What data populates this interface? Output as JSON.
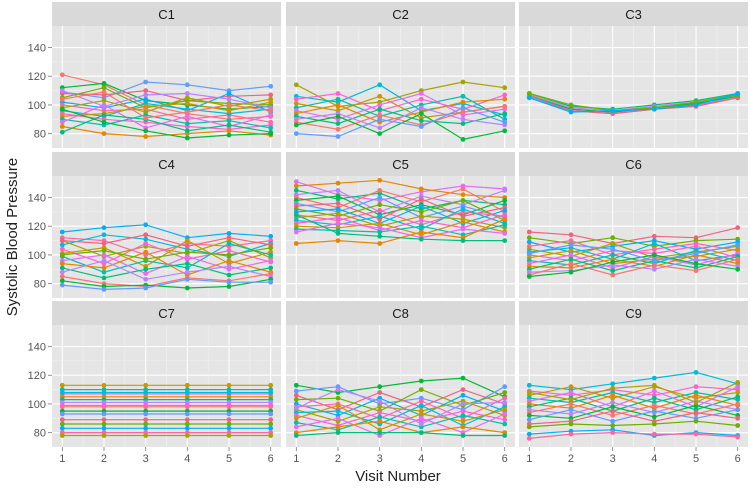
{
  "chart_data": {
    "type": "line",
    "layout": "facet-grid-3x3",
    "xlabel": "Visit Number",
    "ylabel": "Systolic Blood Pressure",
    "x": [
      1,
      2,
      3,
      4,
      5,
      6
    ],
    "x_ticks": [
      "1",
      "2",
      "3",
      "4",
      "5",
      "6"
    ],
    "y_ticks": [
      "80",
      "100",
      "120",
      "140"
    ],
    "ylim": [
      70,
      155
    ],
    "grid": true,
    "background": "#e5e5e5",
    "strip_fill": "#d9d9d9",
    "palette": [
      "#f8766d",
      "#e58700",
      "#c99800",
      "#a3a500",
      "#6bb100",
      "#00ba38",
      "#00bf7d",
      "#00c0af",
      "#00bcd8",
      "#00b0f6",
      "#619cff",
      "#b983ff",
      "#e76bf3",
      "#fd61d1",
      "#ff67a4",
      "#f0637f"
    ],
    "panels": [
      {
        "title": "C1",
        "series": [
          [
            121,
            114,
            100,
            94,
            90,
            92
          ],
          [
            112,
            115,
            103,
            100,
            97,
            99
          ],
          [
            109,
            105,
            116,
            114,
            110,
            113
          ],
          [
            108,
            107,
            110,
            103,
            106,
            107
          ],
          [
            105,
            112,
            98,
            103,
            101,
            100
          ],
          [
            102,
            98,
            104,
            96,
            108,
            95
          ],
          [
            100,
            96,
            97,
            90,
            93,
            88
          ],
          [
            98,
            103,
            95,
            105,
            99,
            104
          ],
          [
            96,
            92,
            101,
            97,
            94,
            97
          ],
          [
            94,
            90,
            88,
            85,
            83,
            86
          ],
          [
            92,
            94,
            99,
            101,
            96,
            102
          ],
          [
            90,
            86,
            93,
            87,
            89,
            84
          ],
          [
            88,
            100,
            84,
            92,
            85,
            93
          ],
          [
            85,
            80,
            78,
            80,
            82,
            79
          ],
          [
            81,
            93,
            90,
            82,
            86,
            81
          ],
          [
            110,
            99,
            107,
            108,
            104,
            98
          ],
          [
            104,
            109,
            91,
            95,
            100,
            96
          ],
          [
            97,
            88,
            82,
            77,
            79,
            80
          ]
        ]
      },
      {
        "title": "C2",
        "series": [
          [
            114,
            99,
            102,
            110,
            116,
            112
          ],
          [
            106,
            102,
            114,
            96,
            101,
            93
          ],
          [
            104,
            108,
            96,
            104,
            97,
            107
          ],
          [
            101,
            96,
            106,
            91,
            95,
            99
          ],
          [
            98,
            104,
            92,
            100,
            106,
            90
          ],
          [
            96,
            90,
            100,
            108,
            93,
            97
          ],
          [
            94,
            100,
            88,
            95,
            102,
            104
          ],
          [
            92,
            87,
            97,
            89,
            87,
            94
          ],
          [
            90,
            94,
            84,
            98,
            90,
            86
          ],
          [
            88,
            83,
            93,
            86,
            95,
            99
          ],
          [
            86,
            92,
            80,
            94,
            76,
            82
          ],
          [
            80,
            78,
            90,
            85,
            98,
            88
          ]
        ]
      },
      {
        "title": "C3",
        "series": [
          [
            108,
            99,
            97,
            100,
            103,
            108
          ],
          [
            107,
            98,
            96,
            99,
            102,
            107
          ],
          [
            107,
            97,
            95,
            98,
            101,
            106
          ],
          [
            106,
            97,
            95,
            98,
            101,
            106
          ],
          [
            106,
            96,
            94,
            97,
            100,
            105
          ],
          [
            105,
            96,
            94,
            97,
            99,
            105
          ],
          [
            108,
            100,
            96,
            98,
            102,
            107
          ],
          [
            105,
            95,
            96,
            97,
            100,
            108
          ]
        ]
      },
      {
        "title": "C4",
        "series": [
          [
            116,
            119,
            121,
            112,
            115,
            113
          ],
          [
            112,
            110,
            100,
            108,
            106,
            110
          ],
          [
            110,
            99,
            106,
            101,
            110,
            98
          ],
          [
            107,
            114,
            111,
            104,
            99,
            108
          ],
          [
            104,
            94,
            108,
            97,
            103,
            95
          ],
          [
            101,
            105,
            92,
            110,
            94,
            102
          ],
          [
            99,
            88,
            96,
            91,
            108,
            100
          ],
          [
            96,
            100,
            87,
            99,
            90,
            96
          ],
          [
            94,
            91,
            102,
            86,
            96,
            88
          ],
          [
            91,
            84,
            90,
            94,
            86,
            91
          ],
          [
            88,
            96,
            83,
            88,
            92,
            85
          ],
          [
            85,
            80,
            78,
            84,
            82,
            87
          ],
          [
            82,
            78,
            79,
            77,
            78,
            83
          ],
          [
            79,
            76,
            77,
            83,
            81,
            81
          ],
          [
            110,
            108,
            114,
            106,
            112,
            107
          ],
          [
            100,
            103,
            97,
            102,
            100,
            105
          ]
        ]
      },
      {
        "title": "C5",
        "series": [
          [
            151,
            142,
            138,
            144,
            148,
            146
          ],
          [
            148,
            150,
            152,
            146,
            142,
            140
          ],
          [
            145,
            139,
            143,
            132,
            138,
            135
          ],
          [
            142,
            145,
            130,
            141,
            135,
            145
          ],
          [
            140,
            133,
            145,
            137,
            146,
            130
          ],
          [
            138,
            141,
            128,
            135,
            128,
            138
          ],
          [
            136,
            130,
            140,
            126,
            134,
            126
          ],
          [
            134,
            136,
            125,
            139,
            127,
            133
          ],
          [
            132,
            127,
            135,
            130,
            138,
            124
          ],
          [
            130,
            132,
            122,
            134,
            122,
            131
          ],
          [
            128,
            124,
            131,
            121,
            130,
            127
          ],
          [
            126,
            129,
            120,
            127,
            125,
            119
          ],
          [
            124,
            121,
            127,
            118,
            132,
            122
          ],
          [
            122,
            126,
            117,
            124,
            119,
            128
          ],
          [
            120,
            119,
            122,
            114,
            123,
            116
          ],
          [
            118,
            117,
            116,
            120,
            114,
            121
          ],
          [
            116,
            122,
            119,
            112,
            118,
            115
          ],
          [
            108,
            110,
            108,
            116,
            112,
            125
          ],
          [
            128,
            115,
            113,
            111,
            110,
            110
          ]
        ]
      },
      {
        "title": "C6",
        "series": [
          [
            116,
            114,
            108,
            113,
            112,
            119
          ],
          [
            112,
            108,
            112,
            106,
            110,
            111
          ],
          [
            109,
            102,
            106,
            110,
            104,
            109
          ],
          [
            106,
            110,
            100,
            104,
            108,
            103
          ],
          [
            104,
            99,
            108,
            98,
            102,
            106
          ],
          [
            102,
            105,
            97,
            108,
            96,
            100
          ],
          [
            100,
            96,
            103,
            101,
            106,
            98
          ],
          [
            98,
            103,
            94,
            97,
            99,
            104
          ],
          [
            96,
            93,
            100,
            94,
            103,
            96
          ],
          [
            94,
            100,
            91,
            99,
            93,
            101
          ],
          [
            92,
            91,
            97,
            92,
            100,
            94
          ],
          [
            90,
            97,
            89,
            96,
            91,
            99
          ],
          [
            88,
            89,
            93,
            90,
            97,
            92
          ],
          [
            86,
            94,
            86,
            93,
            89,
            97
          ],
          [
            85,
            88,
            95,
            100,
            94,
            90
          ],
          [
            101,
            107,
            104,
            96,
            101,
            107
          ]
        ]
      },
      {
        "title": "C7",
        "series": [
          [
            113,
            113,
            113,
            113,
            113,
            113
          ],
          [
            110,
            110,
            110,
            110,
            110,
            110
          ],
          [
            107,
            107,
            107,
            107,
            107,
            107
          ],
          [
            105,
            105,
            105,
            105,
            105,
            105
          ],
          [
            103,
            103,
            103,
            103,
            103,
            103
          ],
          [
            101,
            101,
            101,
            101,
            101,
            101
          ],
          [
            98,
            98,
            98,
            98,
            98,
            98
          ],
          [
            95,
            95,
            95,
            95,
            95,
            95
          ],
          [
            93,
            93,
            93,
            93,
            93,
            93
          ],
          [
            89,
            89,
            89,
            89,
            89,
            89
          ],
          [
            86,
            86,
            86,
            86,
            86,
            86
          ],
          [
            83,
            83,
            83,
            83,
            83,
            83
          ],
          [
            80,
            80,
            80,
            80,
            80,
            80
          ],
          [
            78,
            78,
            78,
            78,
            78,
            78
          ],
          [
            108,
            108,
            108,
            108,
            108,
            108
          ],
          [
            99,
            99,
            99,
            99,
            99,
            99
          ]
        ]
      },
      {
        "title": "C8",
        "series": [
          [
            113,
            108,
            112,
            116,
            118,
            105
          ],
          [
            109,
            112,
            100,
            104,
            96,
            112
          ],
          [
            106,
            96,
            108,
            98,
            110,
            100
          ],
          [
            103,
            104,
            95,
            110,
            99,
            108
          ],
          [
            100,
            92,
            104,
            92,
            106,
            95
          ],
          [
            98,
            100,
            90,
            102,
            90,
            104
          ],
          [
            96,
            88,
            98,
            95,
            102,
            92
          ],
          [
            94,
            95,
            86,
            99,
            85,
            98
          ],
          [
            92,
            85,
            94,
            88,
            95,
            89
          ],
          [
            90,
            99,
            82,
            93,
            88,
            96
          ],
          [
            87,
            82,
            91,
            84,
            92,
            86
          ],
          [
            84,
            90,
            78,
            90,
            80,
            93
          ],
          [
            80,
            84,
            88,
            80,
            84,
            80
          ],
          [
            78,
            80,
            80,
            80,
            78,
            78
          ],
          [
            97,
            110,
            102,
            86,
            100,
            101
          ]
        ]
      },
      {
        "title": "C9",
        "series": [
          [
            113,
            110,
            114,
            118,
            122,
            114
          ],
          [
            109,
            106,
            110,
            106,
            112,
            110
          ],
          [
            106,
            112,
            104,
            112,
            104,
            108
          ],
          [
            104,
            101,
            108,
            101,
            108,
            103
          ],
          [
            102,
            108,
            98,
            109,
            98,
            112
          ],
          [
            100,
            97,
            106,
            97,
            106,
            99
          ],
          [
            98,
            104,
            95,
            104,
            96,
            105
          ],
          [
            96,
            93,
            101,
            94,
            102,
            96
          ],
          [
            94,
            100,
            92,
            99,
            93,
            100
          ],
          [
            92,
            90,
            98,
            91,
            99,
            92
          ],
          [
            89,
            96,
            88,
            95,
            90,
            96
          ],
          [
            86,
            88,
            95,
            88,
            94,
            90
          ],
          [
            84,
            86,
            85,
            86,
            88,
            85
          ],
          [
            79,
            81,
            82,
            78,
            80,
            78
          ],
          [
            76,
            79,
            80,
            79,
            79,
            77
          ],
          [
            108,
            103,
            111,
            113,
            101,
            115
          ]
        ]
      }
    ]
  }
}
